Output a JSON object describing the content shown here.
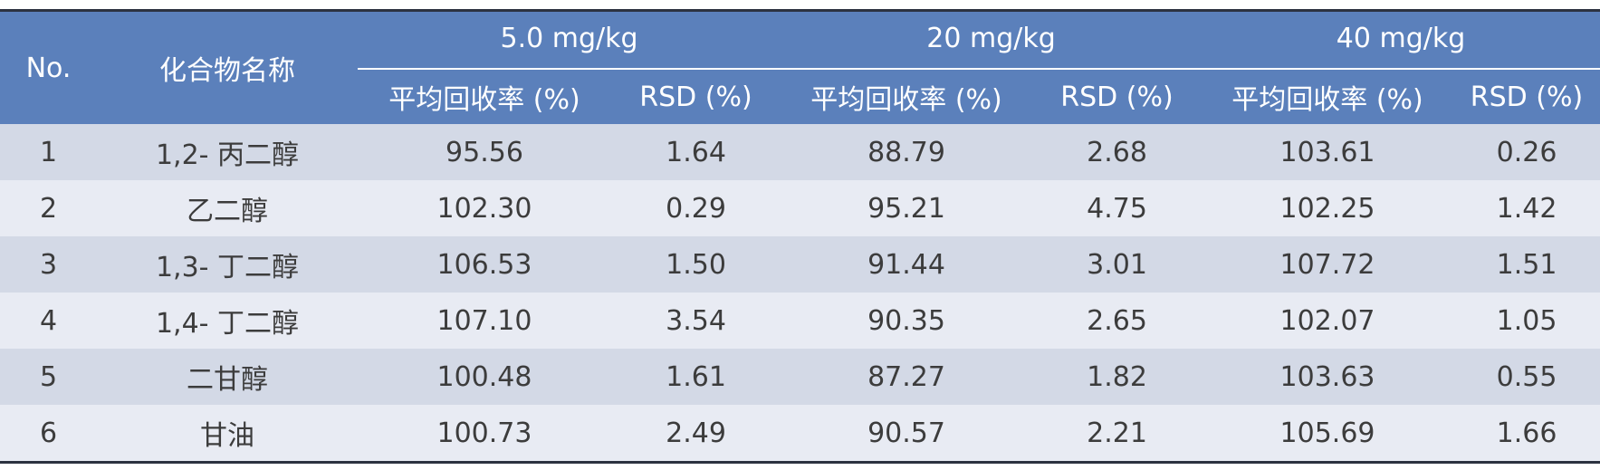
{
  "table": {
    "headers": {
      "no": "No.",
      "name": "化合物名称",
      "groups": [
        "5.0 mg/kg",
        "20 mg/kg",
        "40 mg/kg"
      ],
      "sub": [
        "平均回收率 (%)",
        "RSD (%)",
        "平均回收率 (%)",
        "RSD (%)",
        "平均回收率 (%)",
        "RSD (%)"
      ]
    },
    "rows": [
      [
        "1",
        "1,2- 丙二醇",
        "95.56",
        "1.64",
        "88.79",
        "2.68",
        "103.61",
        "0.26"
      ],
      [
        "2",
        "乙二醇",
        "102.30",
        "0.29",
        "95.21",
        "4.75",
        "102.25",
        "1.42"
      ],
      [
        "3",
        "1,3- 丁二醇",
        "106.53",
        "1.50",
        "91.44",
        "3.01",
        "107.72",
        "1.51"
      ],
      [
        "4",
        "1,4- 丁二醇",
        "107.10",
        "3.54",
        "90.35",
        "2.65",
        "102.07",
        "1.05"
      ],
      [
        "5",
        "二甘醇",
        "100.48",
        "1.61",
        "87.27",
        "1.82",
        "103.63",
        "0.55"
      ],
      [
        "6",
        "甘油",
        "100.73",
        "2.49",
        "90.57",
        "2.21",
        "105.69",
        "1.66"
      ]
    ]
  },
  "colors": {
    "header_bg": "#5b80bb",
    "header_text": "#ffffff",
    "row_odd": "#d3d9e6",
    "row_even": "#e8ebf3",
    "rule": "#2c3240"
  }
}
